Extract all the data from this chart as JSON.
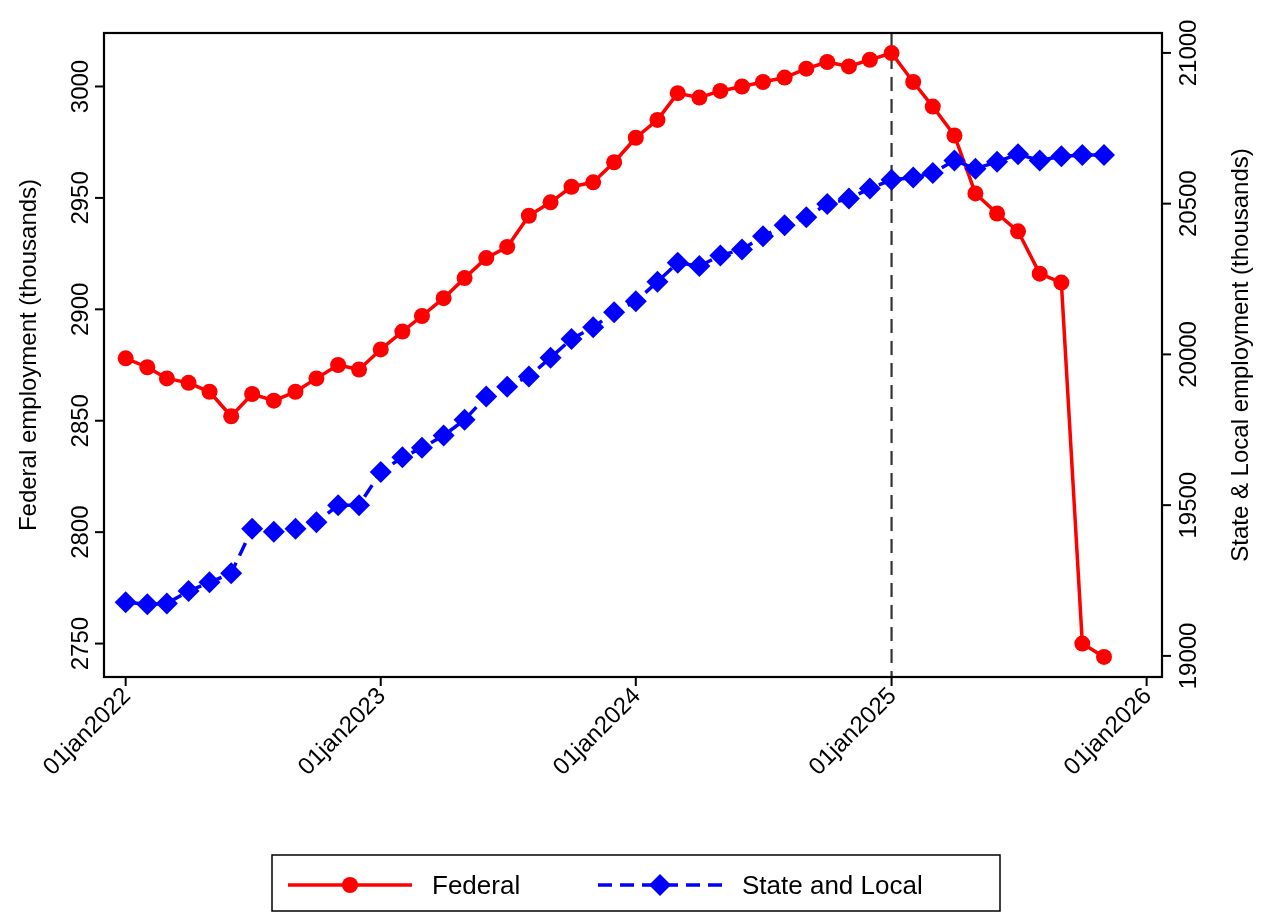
{
  "chart_data": {
    "type": "line",
    "ylabel": "Federal employment (thousands)",
    "y2label": "State & Local employment (thousands)",
    "x": [
      "2022-01",
      "2022-02",
      "2022-03",
      "2022-04",
      "2022-05",
      "2022-06",
      "2022-07",
      "2022-08",
      "2022-09",
      "2022-10",
      "2022-11",
      "2022-12",
      "2023-01",
      "2023-02",
      "2023-03",
      "2023-04",
      "2023-05",
      "2023-06",
      "2023-07",
      "2023-08",
      "2023-09",
      "2023-10",
      "2023-11",
      "2023-12",
      "2024-01",
      "2024-02",
      "2024-03",
      "2024-04",
      "2024-05",
      "2024-06",
      "2024-07",
      "2024-08",
      "2024-09",
      "2024-10",
      "2024-11",
      "2024-12",
      "2025-01",
      "2025-02",
      "2025-03",
      "2025-04",
      "2025-05",
      "2025-06",
      "2025-07",
      "2025-08",
      "2025-09",
      "2025-10",
      "2025-11"
    ],
    "series": [
      {
        "name": "Federal",
        "color": "#ff0000",
        "marker": "circle",
        "line_style": "solid",
        "axis": "y",
        "values": [
          2878,
          2874,
          2869,
          2867,
          2863,
          2852,
          2862,
          2859,
          2863,
          2869,
          2875,
          2873,
          2882,
          2890,
          2897,
          2905,
          2914,
          2923,
          2928,
          2942,
          2948,
          2955,
          2957,
          2966,
          2977,
          2985,
          2997,
          2995,
          2998,
          3000,
          3002,
          3004,
          3008,
          3011,
          3009,
          3012,
          3015,
          3002,
          2991,
          2978,
          2952,
          2943,
          2935,
          2916,
          2912,
          2750,
          2744
        ]
      },
      {
        "name": "State and Local",
        "color": "#0000ff",
        "marker": "diamond",
        "line_style": "dashed",
        "axis": "y2",
        "values": [
          19178,
          19171,
          19174,
          19215,
          19244,
          19274,
          19422,
          19412,
          19422,
          19443,
          19500,
          19500,
          19610,
          19659,
          19690,
          19731,
          19783,
          19860,
          19893,
          19927,
          19989,
          20051,
          20090,
          20140,
          20176,
          20241,
          20304,
          20293,
          20328,
          20348,
          20392,
          20428,
          20455,
          20499,
          20517,
          20550,
          20579,
          20587,
          20602,
          20643,
          20616,
          20639,
          20664,
          20643,
          20657,
          20661,
          20661
        ]
      }
    ],
    "xlim": [
      "2021-12-01",
      "2026-01-23"
    ],
    "xticks": [
      {
        "value": "2022-01-01",
        "label": "01jan2022"
      },
      {
        "value": "2023-01-01",
        "label": "01jan2023"
      },
      {
        "value": "2024-01-01",
        "label": "01jan2024"
      },
      {
        "value": "2025-01-01",
        "label": "01jan2025"
      },
      {
        "value": "2026-01-01",
        "label": "01jan2026"
      }
    ],
    "ylim": [
      2735,
      3024
    ],
    "yticks": [
      2750,
      2800,
      2850,
      2900,
      2950,
      3000
    ],
    "y2lim": [
      18930,
      21066
    ],
    "y2ticks": [
      19000,
      19500,
      20000,
      20500,
      21000
    ],
    "ref_lines": [
      {
        "axis": "x",
        "value": "2025-01-01",
        "color": "#333333",
        "line_style": "dashed"
      }
    ],
    "grid": false,
    "legend": "bottom"
  }
}
